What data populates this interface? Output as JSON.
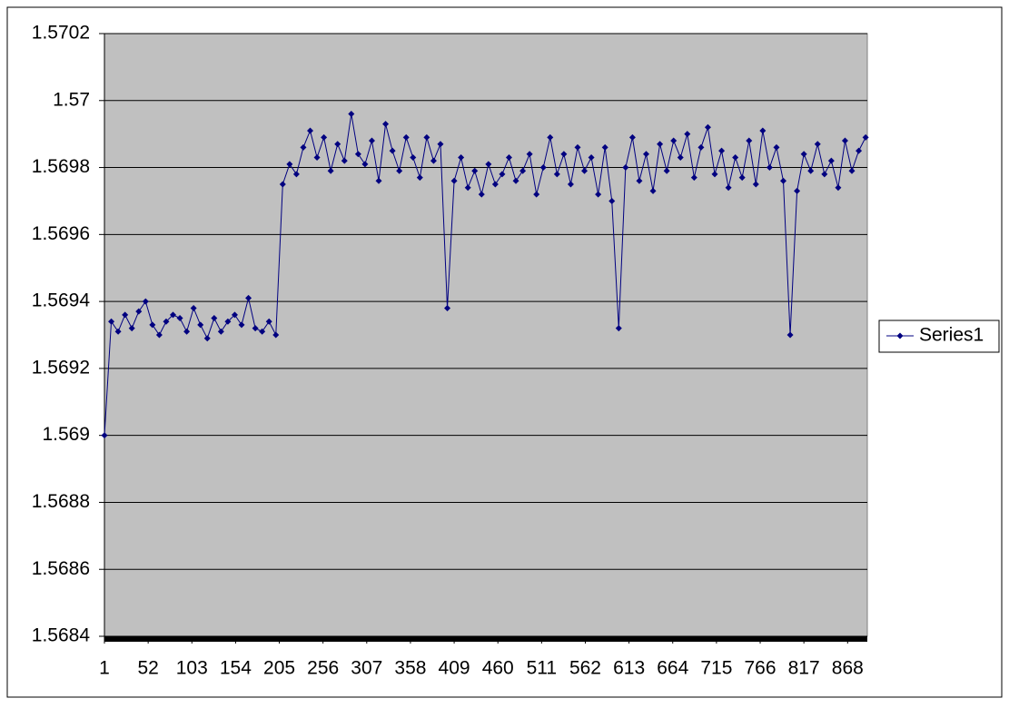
{
  "chart_data": {
    "type": "line",
    "x": [
      1,
      9,
      17,
      25,
      33,
      41,
      49,
      57,
      65,
      73,
      81,
      89,
      97,
      105,
      113,
      121,
      129,
      137,
      145,
      153,
      161,
      169,
      177,
      185,
      193,
      201,
      209,
      217,
      225,
      233,
      241,
      249,
      257,
      265,
      273,
      281,
      289,
      297,
      305,
      313,
      321,
      329,
      337,
      345,
      353,
      361,
      369,
      377,
      385,
      393,
      401,
      409,
      417,
      425,
      433,
      441,
      449,
      457,
      465,
      473,
      481,
      489,
      497,
      505,
      513,
      521,
      529,
      537,
      545,
      553,
      561,
      569,
      577,
      585,
      593,
      601,
      609,
      617,
      625,
      633,
      641,
      649,
      657,
      665,
      673,
      681,
      689,
      697,
      705,
      713,
      721,
      729,
      737,
      745,
      753,
      761,
      769,
      777,
      785,
      793,
      801,
      809,
      817,
      825,
      833,
      841,
      849,
      857,
      865,
      873,
      881,
      889
    ],
    "series": [
      {
        "name": "Series1",
        "color": "#000080",
        "values": [
          1.569,
          1.56934,
          1.56931,
          1.56936,
          1.56932,
          1.56937,
          1.5694,
          1.56933,
          1.5693,
          1.56934,
          1.56936,
          1.56935,
          1.56931,
          1.56938,
          1.56933,
          1.56929,
          1.56935,
          1.56931,
          1.56934,
          1.56936,
          1.56933,
          1.56941,
          1.56932,
          1.56931,
          1.56934,
          1.5693,
          1.56975,
          1.56981,
          1.56978,
          1.56986,
          1.56991,
          1.56983,
          1.56989,
          1.56979,
          1.56987,
          1.56982,
          1.56996,
          1.56984,
          1.56981,
          1.56988,
          1.56976,
          1.56993,
          1.56985,
          1.56979,
          1.56989,
          1.56983,
          1.56977,
          1.56989,
          1.56982,
          1.56987,
          1.56938,
          1.56976,
          1.56983,
          1.56974,
          1.56979,
          1.56972,
          1.56981,
          1.56975,
          1.56978,
          1.56983,
          1.56976,
          1.56979,
          1.56984,
          1.56972,
          1.5698,
          1.56989,
          1.56978,
          1.56984,
          1.56975,
          1.56986,
          1.56979,
          1.56983,
          1.56972,
          1.56986,
          1.5697,
          1.56932,
          1.5698,
          1.56989,
          1.56976,
          1.56984,
          1.56973,
          1.56987,
          1.56979,
          1.56988,
          1.56983,
          1.5699,
          1.56977,
          1.56986,
          1.56992,
          1.56978,
          1.56985,
          1.56974,
          1.56983,
          1.56977,
          1.56988,
          1.56975,
          1.56991,
          1.5698,
          1.56986,
          1.56976,
          1.5693,
          1.56973,
          1.56984,
          1.56979,
          1.56987,
          1.56978,
          1.56982,
          1.56974,
          1.56988,
          1.56979,
          1.56985,
          1.56989
        ]
      }
    ],
    "xlim": [
      1,
      891
    ],
    "xticks": [
      1,
      52,
      103,
      154,
      205,
      256,
      307,
      358,
      409,
      460,
      511,
      562,
      613,
      664,
      715,
      766,
      817,
      868
    ],
    "ylim": [
      1.5684,
      1.5702
    ],
    "yticks": [
      1.5684,
      1.5686,
      1.5688,
      1.569,
      1.5692,
      1.5694,
      1.5696,
      1.5698,
      1.57,
      1.5702
    ],
    "grid": true,
    "legend": "right",
    "plot_background": "#c0c0c0"
  }
}
